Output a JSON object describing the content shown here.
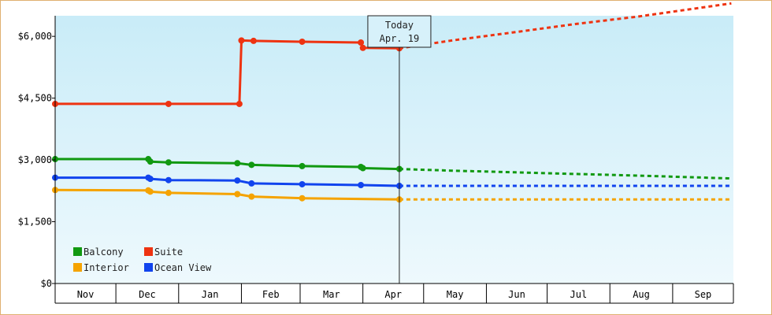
{
  "chart_data": {
    "type": "line",
    "title": "",
    "xlabel": "",
    "ylabel": "",
    "ylim": [
      0,
      6500
    ],
    "y_ticks": [
      0,
      1500,
      3000,
      4500,
      6000
    ],
    "y_tick_labels": [
      "$0",
      "$1,500",
      "$3,000",
      "$4,500",
      "$6,000"
    ],
    "x_months": [
      "Nov",
      "Dec",
      "Jan",
      "Feb",
      "Mar",
      "Apr",
      "May",
      "Jun",
      "Jul",
      "Aug",
      "Sep"
    ],
    "x_range": [
      "2023-11-01",
      "2024-09-30"
    ],
    "grid": false,
    "legend_position": "bottom-left",
    "today": {
      "label": "Today",
      "date_label": "Apr. 19",
      "date": "2024-04-19"
    },
    "series": [
      {
        "name": "Balcony",
        "color": "#119911",
        "history": [
          [
            "2023-11-01",
            3020
          ],
          [
            "2023-12-17",
            3020
          ],
          [
            "2023-12-18",
            2960
          ],
          [
            "2023-12-27",
            2940
          ],
          [
            "2024-01-30",
            2920
          ],
          [
            "2024-02-06",
            2880
          ],
          [
            "2024-03-02",
            2850
          ],
          [
            "2024-03-31",
            2830
          ],
          [
            "2024-04-01",
            2800
          ],
          [
            "2024-04-19",
            2780
          ]
        ],
        "forecast": [
          [
            "2024-04-19",
            2780
          ],
          [
            "2024-05-15",
            2740
          ],
          [
            "2024-06-15",
            2700
          ],
          [
            "2024-07-15",
            2660
          ],
          [
            "2024-08-15",
            2620
          ],
          [
            "2024-09-30",
            2550
          ]
        ]
      },
      {
        "name": "Suite",
        "color": "#ee3311",
        "history": [
          [
            "2023-11-01",
            4360
          ],
          [
            "2023-12-27",
            4360
          ],
          [
            "2024-01-31",
            4360
          ],
          [
            "2024-02-01",
            5900
          ],
          [
            "2024-02-07",
            5890
          ],
          [
            "2024-03-02",
            5870
          ],
          [
            "2024-03-31",
            5850
          ],
          [
            "2024-04-01",
            5720
          ],
          [
            "2024-04-19",
            5710
          ]
        ],
        "forecast": [
          [
            "2024-04-19",
            5710
          ],
          [
            "2024-05-15",
            5900
          ],
          [
            "2024-06-15",
            6100
          ],
          [
            "2024-07-15",
            6300
          ],
          [
            "2024-08-15",
            6480
          ],
          [
            "2024-09-30",
            6800
          ]
        ]
      },
      {
        "name": "Interior",
        "color": "#f5a300",
        "history": [
          [
            "2023-11-01",
            2270
          ],
          [
            "2023-12-17",
            2260
          ],
          [
            "2023-12-18",
            2230
          ],
          [
            "2023-12-27",
            2200
          ],
          [
            "2024-01-30",
            2170
          ],
          [
            "2024-02-06",
            2110
          ],
          [
            "2024-03-02",
            2070
          ],
          [
            "2024-04-19",
            2040
          ]
        ],
        "forecast": [
          [
            "2024-04-19",
            2040
          ],
          [
            "2024-09-30",
            2040
          ]
        ]
      },
      {
        "name": "Ocean View",
        "color": "#1144ee",
        "history": [
          [
            "2023-11-01",
            2570
          ],
          [
            "2023-12-17",
            2570
          ],
          [
            "2023-12-18",
            2540
          ],
          [
            "2023-12-27",
            2510
          ],
          [
            "2024-01-30",
            2500
          ],
          [
            "2024-02-06",
            2430
          ],
          [
            "2024-03-02",
            2410
          ],
          [
            "2024-03-31",
            2390
          ],
          [
            "2024-04-19",
            2370
          ]
        ],
        "forecast": [
          [
            "2024-04-19",
            2370
          ],
          [
            "2024-09-30",
            2370
          ]
        ]
      }
    ]
  }
}
